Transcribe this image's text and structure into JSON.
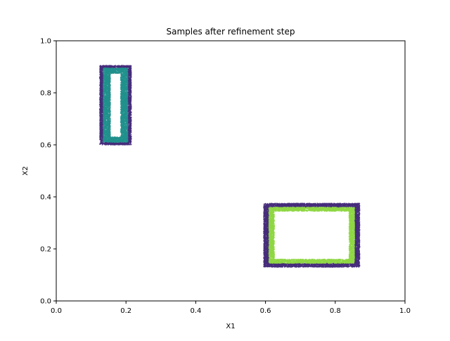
{
  "chart_data": {
    "type": "scatter",
    "title": "Samples after refinement step",
    "xlabel": "X1",
    "ylabel": "X2",
    "xlim": [
      0,
      1
    ],
    "ylim": [
      0,
      1
    ],
    "xticks": [
      "0.0",
      "0.2",
      "0.4",
      "0.6",
      "0.8",
      "1.0"
    ],
    "yticks": [
      "0.0",
      "0.2",
      "0.4",
      "0.6",
      "0.8",
      "1.0"
    ],
    "grid": false,
    "legend": "none",
    "regions": [
      {
        "shape": "rectangle-ring",
        "color": "#472d7b",
        "outer": [
          0.125,
          0.6,
          0.215,
          0.905
        ],
        "inner": [
          0.135,
          0.61,
          0.205,
          0.895
        ]
      },
      {
        "shape": "rectangle-ring",
        "color": "#21908d",
        "outer": [
          0.135,
          0.61,
          0.205,
          0.895
        ],
        "inner": [
          0.155,
          0.63,
          0.185,
          0.875
        ]
      },
      {
        "shape": "rectangle-ring",
        "color": "#472d7b",
        "outer": [
          0.595,
          0.13,
          0.87,
          0.375
        ],
        "inner": [
          0.61,
          0.145,
          0.855,
          0.36
        ]
      },
      {
        "shape": "rectangle-ring",
        "color": "#8fd744",
        "outer": [
          0.61,
          0.145,
          0.855,
          0.36
        ],
        "inner": [
          0.625,
          0.16,
          0.84,
          0.345
        ]
      }
    ]
  }
}
